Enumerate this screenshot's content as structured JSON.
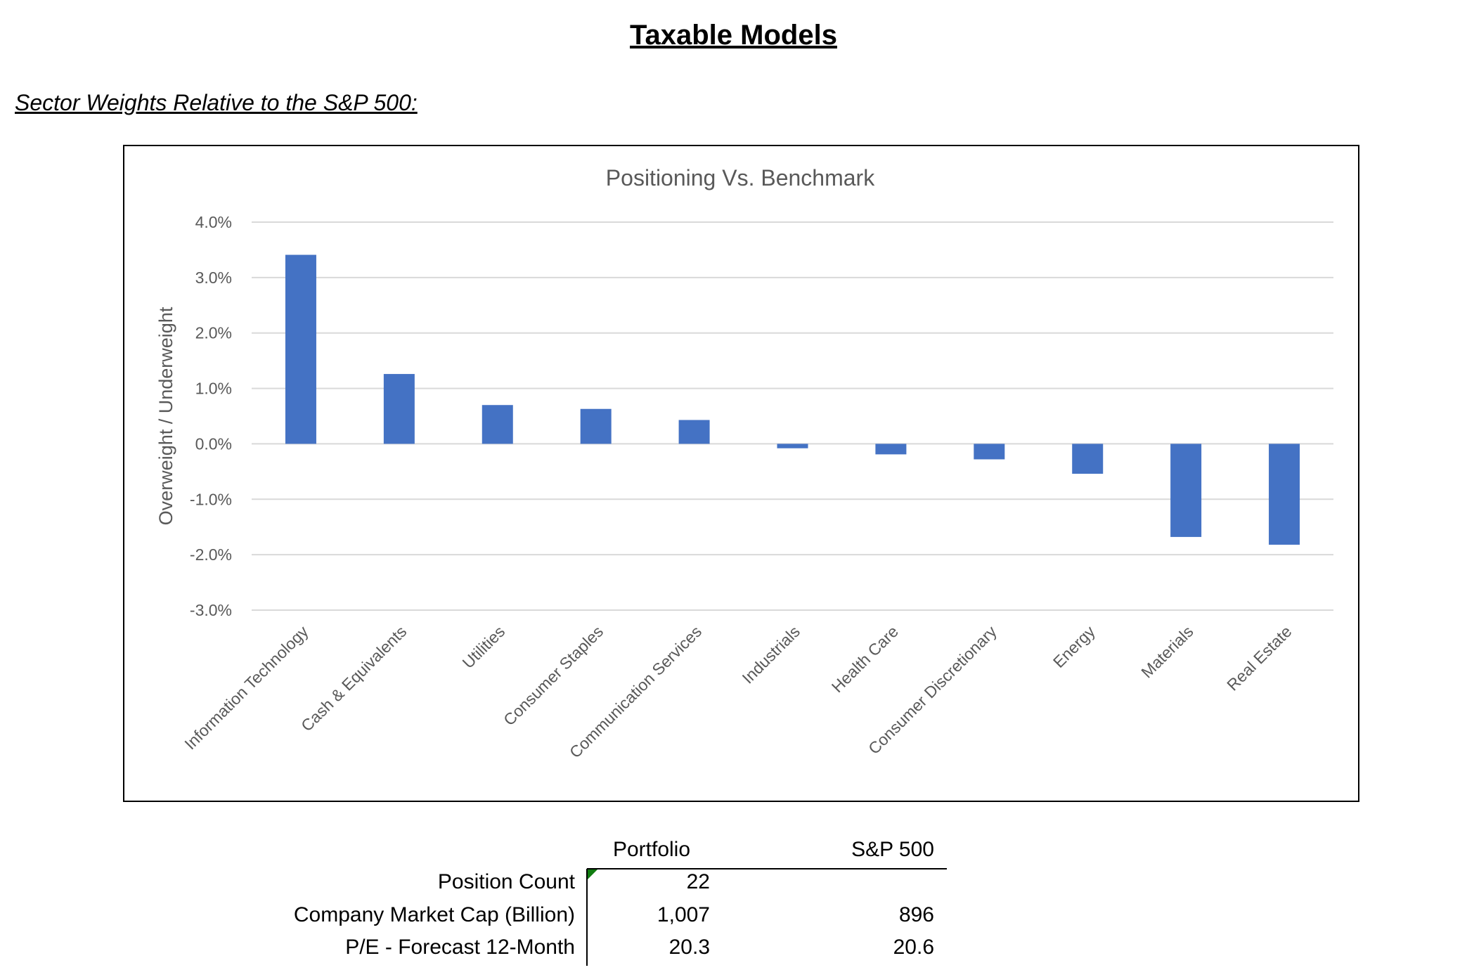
{
  "page": {
    "title": "Taxable Models",
    "subtitle": "Sector Weights Relative to the S&P 500:"
  },
  "chart_data": {
    "type": "bar",
    "title": "Positioning Vs. Benchmark",
    "ylabel": "Overweight / Underweight",
    "xlabel": "",
    "categories": [
      "Information Technology",
      "Cash & Equivalents",
      "Utilities",
      "Consumer Staples",
      "Communication Services",
      "Industrials",
      "Health Care",
      "Consumer Discretionary",
      "Energy",
      "Materials",
      "Real Estate"
    ],
    "values": [
      3.41,
      1.26,
      0.7,
      0.63,
      0.43,
      -0.08,
      -0.19,
      -0.28,
      -0.54,
      -1.68,
      -1.82
    ],
    "unit": "%",
    "ylim": [
      -3.0,
      4.0
    ],
    "yticks": [
      "4.0%",
      "3.0%",
      "2.0%",
      "1.0%",
      "0.0%",
      "-1.0%",
      "-2.0%",
      "-3.0%"
    ],
    "grid": true,
    "bar_color": "#4472C4"
  },
  "table": {
    "headers": [
      "Portfolio",
      "S&P 500"
    ],
    "rows": [
      {
        "label": "Position Count",
        "portfolio": "22",
        "sp500": ""
      },
      {
        "label": "Company Market Cap (Billion)",
        "portfolio": "1,007",
        "sp500": "896"
      },
      {
        "label": "P/E - Forecast 12-Month",
        "portfolio": "20.3",
        "sp500": "20.6"
      }
    ]
  }
}
